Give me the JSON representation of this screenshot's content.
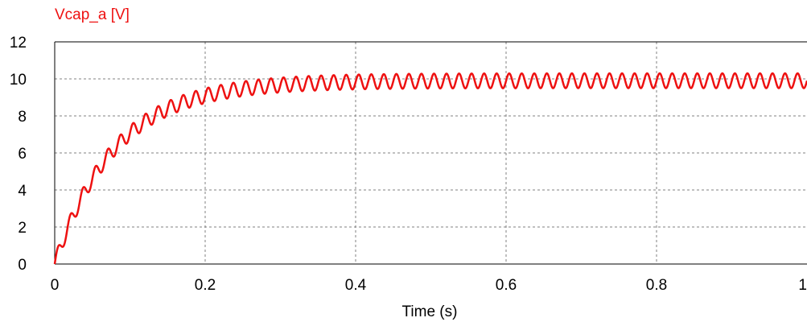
{
  "chart_data": {
    "type": "line",
    "title": "",
    "xlabel": "Time (s)",
    "ylabel": "",
    "xlim": [
      0,
      1
    ],
    "ylim": [
      0,
      12
    ],
    "x_ticks": [
      0,
      0.2,
      0.4,
      0.6,
      0.8,
      1
    ],
    "x_tick_labels": [
      "0",
      "0.2",
      "0.4",
      "0.6",
      "0.8",
      "1"
    ],
    "y_ticks": [
      0,
      2,
      4,
      6,
      8,
      10,
      12
    ],
    "y_tick_labels": [
      "0",
      "2",
      "4",
      "6",
      "8",
      "10",
      "12"
    ],
    "grid": true,
    "series": [
      {
        "name": "Vcap_a [V]",
        "color": "#ee1111",
        "model": {
          "final_value": 9.9,
          "time_constant_s": 0.08,
          "ripple_frequency_hz": 60,
          "ripple_amplitude": 0.4
        }
      }
    ]
  }
}
